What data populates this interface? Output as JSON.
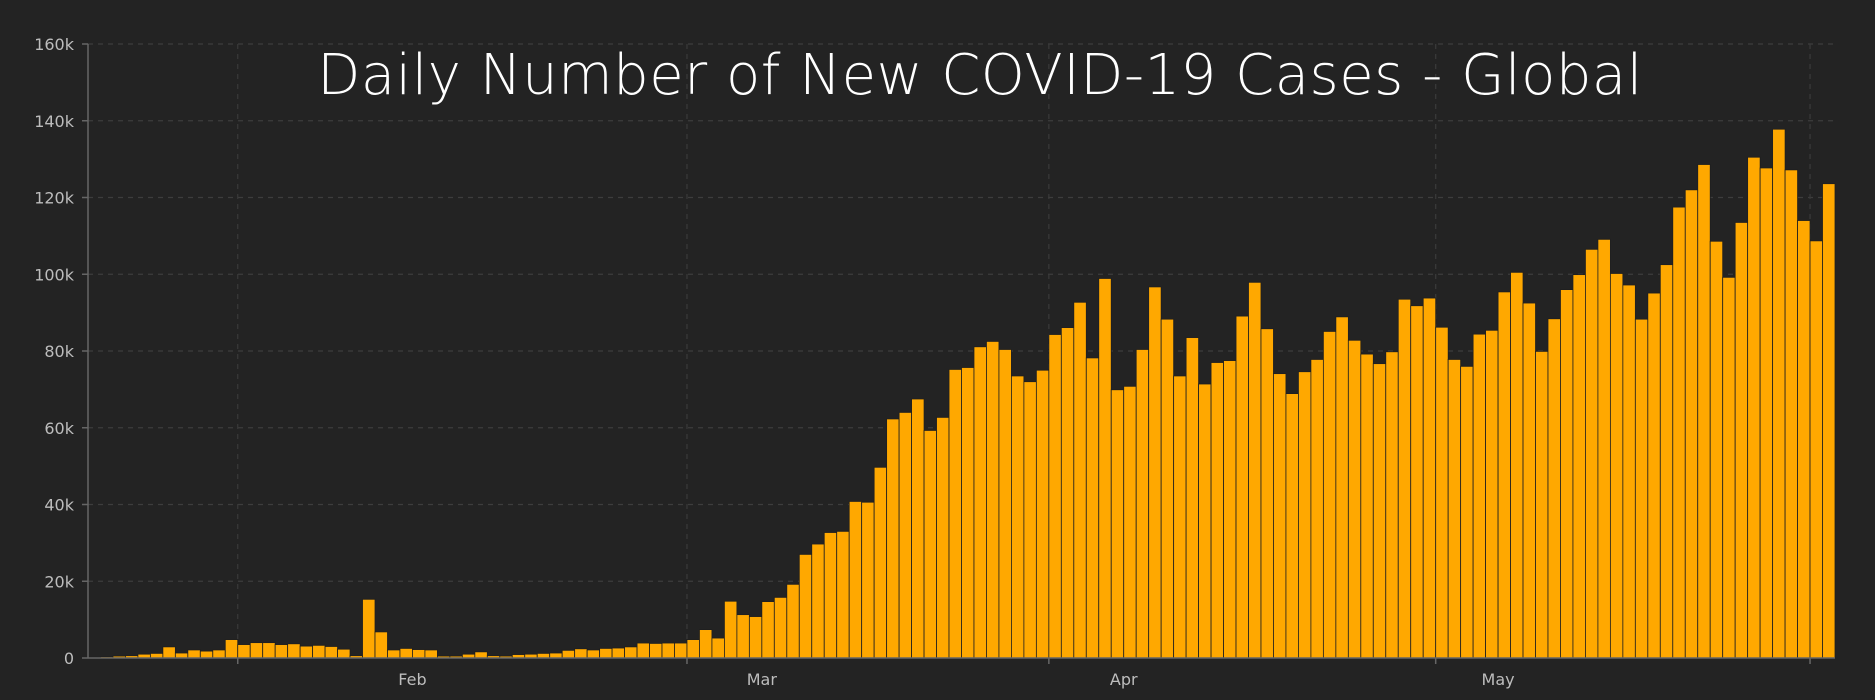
{
  "colors": {
    "background": "#232323",
    "bar": "#FFA800",
    "grid": "#3d3d3d",
    "text": "#bdbdbd",
    "title": "#ffffff"
  },
  "chart_data": {
    "type": "bar",
    "title": "Daily Number of New COVID-19 Cases - Global",
    "xlabel": "",
    "ylabel": "",
    "ylim": [
      0,
      160000
    ],
    "yticks": [
      0,
      20000,
      40000,
      60000,
      80000,
      100000,
      120000,
      140000,
      160000
    ],
    "ytick_labels": [
      "0",
      "20k",
      "40k",
      "60k",
      "80k",
      "100k",
      "120k",
      "140k",
      "160k"
    ],
    "xtick_labels": [
      "Feb",
      "Mar",
      "Apr",
      "May"
    ],
    "grid": true,
    "legend": false,
    "series": [
      {
        "values": [
          200,
          300,
          500,
          600,
          1000,
          1200,
          2900,
          1300,
          2100,
          1800,
          2100,
          4800,
          3500,
          4000,
          4000,
          3500,
          3700,
          3100,
          3300,
          3000,
          2300,
          600,
          15300,
          6800,
          2100,
          2500,
          2200,
          2100,
          500,
          500,
          1000,
          1600,
          600,
          500,
          900,
          1000,
          1200,
          1300,
          2000,
          2400,
          2100,
          2500,
          2600,
          2900,
          3900,
          3800,
          3900,
          3900,
          4800,
          7400,
          5200,
          14800,
          11300,
          10800,
          14700,
          15800,
          19200,
          27000,
          29700,
          32700,
          33000,
          40800,
          40600,
          49700,
          62300,
          64000,
          67500,
          59300,
          62700,
          75200,
          75700,
          81100,
          82500,
          80400,
          73500,
          72000,
          75000,
          84300,
          86100,
          92700,
          78200,
          98900,
          69900,
          70800,
          80400,
          96700,
          88300,
          73500,
          83500,
          71400,
          77000,
          77500,
          89100,
          97900,
          85800,
          74100,
          68900,
          74600,
          77800,
          85100,
          88900,
          82800,
          79200,
          76700,
          79800,
          93500,
          91800,
          93800,
          86200,
          77800,
          76000,
          84400,
          85400,
          95400,
          100500,
          92500,
          79900,
          88400,
          96000,
          99900,
          106500,
          109100,
          100200,
          97200,
          88300,
          95100,
          102500,
          117500,
          122000,
          128600,
          108600,
          99200,
          113500,
          130500,
          127700,
          137800,
          127200,
          114000,
          108700,
          123600
        ]
      }
    ]
  }
}
